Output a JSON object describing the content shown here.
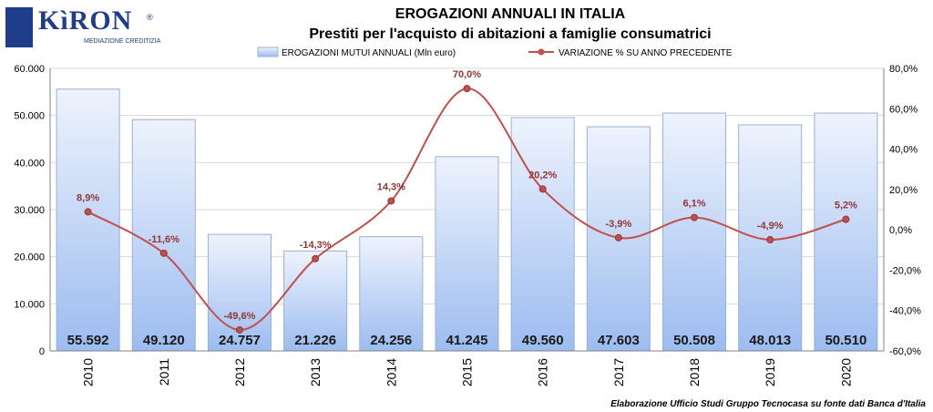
{
  "logo": {
    "brand": "KìRON",
    "tagline": "MEDIAZIONE CREDITIZIA",
    "registered": "®"
  },
  "footer": {
    "source": "Elaborazione Ufficio Studi Gruppo Tecnocasa su fonte dati Banca d'Italia"
  },
  "chart_data": {
    "type": "bar",
    "title": "EROGAZIONI ANNUALI IN ITALIA",
    "subtitle": "Prestiti per l'acquisto di abitazioni a famiglie consumatrici",
    "categories": [
      "2010",
      "2011",
      "2012",
      "2013",
      "2014",
      "2015",
      "2016",
      "2017",
      "2018",
      "2019",
      "2020"
    ],
    "legend_position": "top",
    "series": [
      {
        "name": "EROGAZIONI MUTUI ANNUALI (Mln euro)",
        "type": "bar",
        "axis": "left",
        "values": [
          55592,
          49120,
          24757,
          21226,
          24256,
          41245,
          49560,
          47603,
          50508,
          48013,
          50510
        ],
        "labels": [
          "55.592",
          "49.120",
          "24.757",
          "21.226",
          "24.256",
          "41.245",
          "49.560",
          "47.603",
          "50.508",
          "48.013",
          "50.510"
        ]
      },
      {
        "name": "VARIAZIONE % SU ANNO PRECEDENTE",
        "type": "line",
        "axis": "right",
        "values": [
          8.9,
          -11.6,
          -49.6,
          -14.3,
          14.3,
          70.0,
          20.2,
          -3.9,
          6.1,
          -4.9,
          5.2
        ],
        "labels": [
          "8,9%",
          "-11,6%",
          "-49,6%",
          "-14,3%",
          "14,3%",
          "70,0%",
          "20,2%",
          "-3,9%",
          "6,1%",
          "-4,9%",
          "5,2%"
        ]
      }
    ],
    "y_left": {
      "min": 0,
      "max": 60000,
      "ticks": [
        0,
        10000,
        20000,
        30000,
        40000,
        50000,
        60000
      ],
      "tick_labels": [
        "0",
        "10.000",
        "20.000",
        "30.000",
        "40.000",
        "50.000",
        "60.000"
      ]
    },
    "y_right": {
      "min": -60,
      "max": 80,
      "ticks": [
        -60,
        -40,
        -20,
        0,
        20,
        40,
        60,
        80
      ],
      "tick_labels": [
        "-60,0%",
        "-40,0%",
        "-20,0%",
        "0,0%",
        "20,0%",
        "40,0%",
        "60,0%",
        "80,0%"
      ]
    },
    "grid": true,
    "colors": {
      "bar_top": "#eef3fd",
      "bar_bottom": "#9cbcf0",
      "bar_stroke": "#9bb0d6",
      "line": "#c0504d",
      "line_label": "#943634",
      "grid": "#d9d9d9",
      "title": "#000000"
    }
  }
}
